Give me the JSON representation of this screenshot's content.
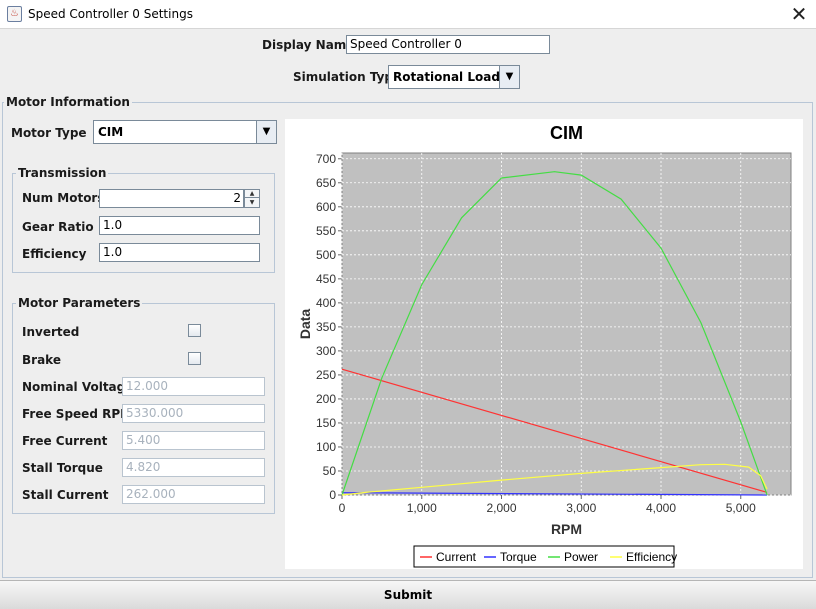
{
  "window": {
    "title": "Speed Controller 0 Settings",
    "close_glyph": "✕",
    "icon_glyph": "♨"
  },
  "header": {
    "display_name_label": "Display Name",
    "display_name_value": "Speed Controller 0",
    "simulation_type_label": "Simulation Type",
    "simulation_type_value": "Rotational Load"
  },
  "motor_info": {
    "title": "Motor Information",
    "motor_type_label": "Motor Type",
    "motor_type_value": "CIM"
  },
  "transmission": {
    "title": "Transmission",
    "num_motors_label": "Num Motors",
    "num_motors_value": "2",
    "gear_ratio_label": "Gear Ratio",
    "gear_ratio_value": "1.0",
    "efficiency_label": "Efficiency",
    "efficiency_value": "1.0"
  },
  "motor_params": {
    "title": "Motor Parameters",
    "inverted_label": "Inverted",
    "inverted_checked": false,
    "brake_label": "Brake",
    "brake_checked": false,
    "nominal_voltage_label": "Nominal Voltage",
    "nominal_voltage_value": "12.000",
    "free_speed_label": "Free Speed RPM",
    "free_speed_value": "5330.000",
    "free_current_label": "Free Current",
    "free_current_value": "5.400",
    "stall_torque_label": "Stall Torque",
    "stall_torque_value": "4.820",
    "stall_current_label": "Stall Current",
    "stall_current_value": "262.000"
  },
  "submit_label": "Submit",
  "chart_data": {
    "type": "line",
    "title": "CIM",
    "xlabel": "RPM",
    "ylabel": "Data",
    "xlim": [
      0,
      5630
    ],
    "ylim": [
      0,
      712
    ],
    "xticks": [
      0,
      1000,
      2000,
      3000,
      4000,
      5000
    ],
    "xtick_labels": [
      "0",
      "1,000",
      "2,000",
      "3,000",
      "4,000",
      "5,000"
    ],
    "yticks": [
      0,
      50,
      100,
      150,
      200,
      250,
      300,
      350,
      400,
      450,
      500,
      550,
      600,
      650,
      700
    ],
    "grid": true,
    "plot_background": "#c0c0c0",
    "legend_position": "bottom",
    "series": [
      {
        "name": "Current",
        "color": "#ff3333",
        "points": [
          [
            0,
            262
          ],
          [
            5330,
            5.4
          ]
        ]
      },
      {
        "name": "Torque",
        "color": "#3333ff",
        "points": [
          [
            0,
            4.82
          ],
          [
            5330,
            0
          ]
        ]
      },
      {
        "name": "Power",
        "color": "#44dd44",
        "points": [
          [
            0,
            0
          ],
          [
            500,
            244
          ],
          [
            1000,
            438
          ],
          [
            1500,
            577
          ],
          [
            2000,
            660
          ],
          [
            2665,
            673
          ],
          [
            3000,
            666
          ],
          [
            3500,
            616
          ],
          [
            4000,
            514
          ],
          [
            4500,
            359
          ],
          [
            5000,
            152
          ],
          [
            5330,
            0
          ]
        ]
      },
      {
        "name": "Efficiency",
        "color": "#ffff44",
        "points": [
          [
            0,
            0
          ],
          [
            300,
            5.4
          ],
          [
            1000,
            16
          ],
          [
            2000,
            31
          ],
          [
            3000,
            45
          ],
          [
            4000,
            57
          ],
          [
            4500,
            63
          ],
          [
            4800,
            64
          ],
          [
            5100,
            58
          ],
          [
            5250,
            40
          ],
          [
            5330,
            12
          ]
        ]
      }
    ]
  }
}
